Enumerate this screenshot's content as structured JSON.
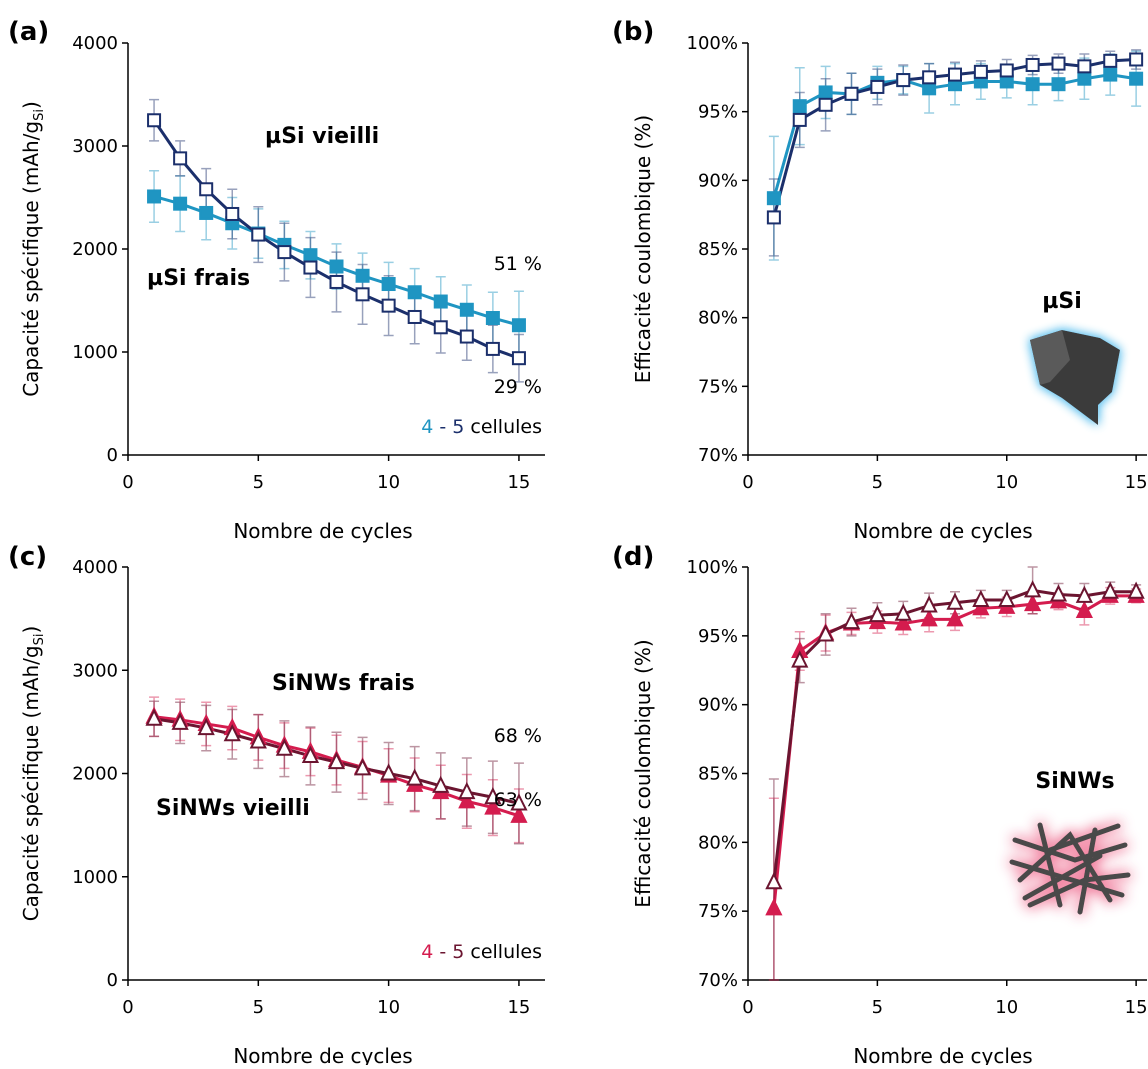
{
  "chart_data": [
    {
      "type": "line",
      "panel": "(a)",
      "x_label": "Nombre de cycles",
      "y_label": [
        "Capacité spécifique (mAh/g",
        "Si",
        ")"
      ],
      "x": [
        1,
        2,
        3,
        4,
        5,
        6,
        7,
        8,
        9,
        10,
        11,
        12,
        13,
        14,
        15
      ],
      "xlim": [
        0,
        16
      ],
      "xticks": [
        0,
        5,
        10,
        15
      ],
      "ylim": [
        0,
        4000
      ],
      "yticks": [
        0,
        1000,
        2000,
        3000,
        4000
      ],
      "series": [
        {
          "name": "µSi frais",
          "color": "#1f95c2",
          "marker": "square",
          "filled": true,
          "values": [
            2510,
            2440,
            2350,
            2250,
            2150,
            2040,
            1940,
            1830,
            1740,
            1660,
            1580,
            1490,
            1410,
            1330,
            1260
          ],
          "errors": [
            250,
            270,
            260,
            250,
            240,
            230,
            230,
            220,
            220,
            210,
            230,
            240,
            240,
            250,
            330
          ]
        },
        {
          "name": "µSi vieilli",
          "color": "#1b2f6b",
          "marker": "square",
          "filled": false,
          "values": [
            3250,
            2880,
            2580,
            2340,
            2140,
            1970,
            1820,
            1680,
            1560,
            1450,
            1340,
            1240,
            1150,
            1030,
            940
          ],
          "errors": [
            200,
            170,
            200,
            240,
            270,
            280,
            290,
            290,
            290,
            290,
            260,
            250,
            230,
            230,
            230
          ]
        }
      ],
      "annotations": [
        {
          "text": "µSi vieilli",
          "color": "#1b2f6b"
        },
        {
          "text": "µSi frais",
          "color": "#1f95c2"
        },
        {
          "text": "51 %",
          "color": "#1f95c2"
        },
        {
          "text": "29 %",
          "color": "#1b2f6b"
        }
      ],
      "cell_note": [
        {
          "text": "4",
          "color": "#1f95c2"
        },
        {
          "text": " - ",
          "color": "#1b2f6b"
        },
        {
          "text": "5",
          "color": "#1b2f6b"
        },
        {
          "text": " cellules",
          "color": "#000000"
        }
      ]
    },
    {
      "type": "line",
      "panel": "(b)",
      "x_label": "Nombre de cycles",
      "y_label": [
        "Efficacité coulombique (%)"
      ],
      "x": [
        1,
        2,
        3,
        4,
        5,
        6,
        7,
        8,
        9,
        10,
        11,
        12,
        13,
        14,
        15
      ],
      "xlim": [
        0,
        16
      ],
      "xticks": [
        0,
        5,
        10,
        15
      ],
      "ylim": [
        70,
        100
      ],
      "yticks": [
        {
          "value": 70,
          "label": "70%"
        },
        {
          "value": 75,
          "label": "75%"
        },
        {
          "value": 80,
          "label": "80%"
        },
        {
          "value": 85,
          "label": "85%"
        },
        {
          "value": 90,
          "label": "90%"
        },
        {
          "value": 95,
          "label": "95%"
        },
        {
          "value": 100,
          "label": "100%"
        }
      ],
      "series": [
        {
          "color": "#1f95c2",
          "marker": "square",
          "filled": true,
          "values": [
            88.7,
            95.4,
            96.4,
            96.3,
            97.1,
            97.3,
            96.7,
            97.0,
            97.2,
            97.2,
            97.0,
            97.0,
            97.4,
            97.7,
            97.4
          ],
          "errors": [
            4.5,
            2.8,
            1.9,
            1.5,
            1.2,
            1.0,
            1.8,
            1.5,
            1.3,
            1.2,
            1.5,
            1.2,
            1.5,
            1.5,
            2.0
          ]
        },
        {
          "color": "#1b2f6b",
          "marker": "square",
          "filled": false,
          "values": [
            87.3,
            94.4,
            95.5,
            96.3,
            96.8,
            97.3,
            97.5,
            97.7,
            97.9,
            98.0,
            98.4,
            98.5,
            98.3,
            98.7,
            98.8
          ],
          "errors": [
            2.8,
            2.0,
            1.9,
            1.5,
            1.3,
            1.1,
            1.0,
            0.9,
            0.8,
            0.8,
            0.7,
            0.7,
            0.9,
            0.7,
            0.7
          ]
        }
      ],
      "annotations": [
        {
          "text": "µSi",
          "color": "#1f95c2"
        }
      ]
    },
    {
      "type": "line",
      "panel": "(c)",
      "x_label": "Nombre de cycles",
      "y_label": [
        "Capacité spécifique (mAh/g",
        "Si",
        ")"
      ],
      "x": [
        1,
        2,
        3,
        4,
        5,
        6,
        7,
        8,
        9,
        10,
        11,
        12,
        13,
        14,
        15
      ],
      "xlim": [
        0,
        16
      ],
      "xticks": [
        0,
        5,
        10,
        15
      ],
      "ylim": [
        0,
        4000
      ],
      "yticks": [
        0,
        1000,
        2000,
        3000,
        4000
      ],
      "series": [
        {
          "name": "SiNWs frais",
          "color": "#d41c4e",
          "marker": "triangle",
          "filled": true,
          "values": [
            2550,
            2520,
            2480,
            2440,
            2350,
            2270,
            2210,
            2130,
            2060,
            1980,
            1890,
            1820,
            1730,
            1670,
            1590
          ],
          "errors": [
            190,
            200,
            210,
            210,
            220,
            220,
            230,
            240,
            250,
            260,
            260,
            260,
            260,
            270,
            260
          ]
        },
        {
          "name": "SiNWs vieilli",
          "color": "#6b1530",
          "marker": "triangle",
          "filled": false,
          "values": [
            2530,
            2490,
            2440,
            2380,
            2310,
            2240,
            2170,
            2110,
            2050,
            2000,
            1950,
            1880,
            1820,
            1770,
            1710
          ],
          "errors": [
            170,
            200,
            220,
            240,
            260,
            270,
            280,
            290,
            300,
            300,
            310,
            320,
            330,
            350,
            390
          ]
        }
      ],
      "annotations": [
        {
          "text": "SiNWs frais",
          "color": "#d41c4e"
        },
        {
          "text": "SiNWs vieilli",
          "color": "#6b1530"
        },
        {
          "text": "68 %",
          "color": "#6b1530"
        },
        {
          "text": "63 %",
          "color": "#d41c4e"
        }
      ],
      "cell_note": [
        {
          "text": "4",
          "color": "#d41c4e"
        },
        {
          "text": " - ",
          "color": "#6b1530"
        },
        {
          "text": "5",
          "color": "#6b1530"
        },
        {
          "text": " cellules",
          "color": "#000000"
        }
      ]
    },
    {
      "type": "line",
      "panel": "(d)",
      "x_label": "Nombre de cycles",
      "y_label": [
        "Efficacité coulombique (%)"
      ],
      "x": [
        1,
        2,
        3,
        4,
        5,
        6,
        7,
        8,
        9,
        10,
        11,
        12,
        13,
        14,
        15
      ],
      "xlim": [
        0,
        16
      ],
      "xticks": [
        0,
        5,
        10,
        15
      ],
      "ylim": [
        70,
        100
      ],
      "yticks": [
        {
          "value": 70,
          "label": "70%"
        },
        {
          "value": 75,
          "label": "75%"
        },
        {
          "value": 80,
          "label": "80%"
        },
        {
          "value": 85,
          "label": "85%"
        },
        {
          "value": 90,
          "label": "90%"
        },
        {
          "value": 95,
          "label": "95%"
        },
        {
          "value": 100,
          "label": "100%"
        }
      ],
      "series": [
        {
          "color": "#d41c4e",
          "marker": "triangle",
          "filled": true,
          "values": [
            75.2,
            93.9,
            95.2,
            95.9,
            96.0,
            95.9,
            96.2,
            96.2,
            97.0,
            97.1,
            97.3,
            97.5,
            96.8,
            97.9,
            97.9
          ],
          "errors": [
            8.0,
            1.4,
            1.3,
            0.8,
            0.8,
            0.8,
            0.9,
            0.8,
            0.7,
            0.7,
            0.7,
            0.6,
            1.0,
            0.6,
            0.5
          ]
        },
        {
          "color": "#6b1530",
          "marker": "triangle",
          "filled": false,
          "values": [
            77.1,
            93.2,
            95.1,
            96.0,
            96.5,
            96.6,
            97.2,
            97.4,
            97.6,
            97.6,
            98.3,
            98.0,
            97.9,
            98.2,
            98.2
          ],
          "errors": [
            7.5,
            1.6,
            1.5,
            1.0,
            0.9,
            0.9,
            0.9,
            0.8,
            0.7,
            0.7,
            1.7,
            0.8,
            0.9,
            0.7,
            0.5
          ]
        }
      ],
      "annotations": [
        {
          "text": "SiNWs",
          "color": "#d41c4e"
        }
      ]
    }
  ]
}
